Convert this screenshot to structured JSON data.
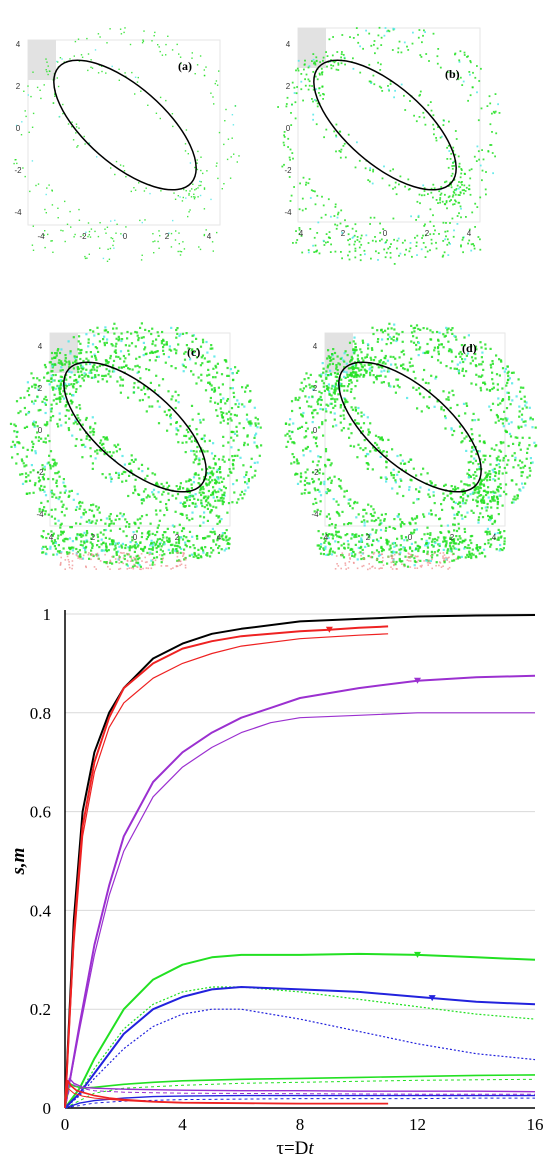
{
  "panels": [
    {
      "label": "(a)",
      "ticks": [
        "4",
        "2",
        "0",
        "-2",
        "-4"
      ],
      "xticks": [
        "-4",
        "-2",
        "0",
        "2",
        "4"
      ],
      "density": 0.25
    },
    {
      "label": "(b)",
      "ticks": [
        "4",
        "2",
        "0",
        "-2",
        "-4"
      ],
      "xticks": [
        "4",
        "2",
        "0",
        "2",
        "4"
      ],
      "density": 0.55
    },
    {
      "label": "(c)",
      "ticks": [
        "4",
        "2",
        "0",
        "-2",
        "-4"
      ],
      "xticks": [
        "4",
        "2",
        "0",
        "2",
        "4"
      ],
      "density": 1.0
    },
    {
      "label": "(d)",
      "ticks": [
        "4",
        "2",
        "0",
        "-2",
        "-4"
      ],
      "xticks": [
        "4",
        "2",
        "0",
        "2",
        "4"
      ],
      "density": 1.0
    }
  ],
  "colors": {
    "green": "#22e022",
    "cyan": "#50e8e8",
    "red": "#ee2222",
    "purple": "#9b30d0",
    "blue": "#2222dd",
    "black": "#000000"
  },
  "chart_data": {
    "type": "line",
    "xlabel": "τ=Dt",
    "ylabel": "s,m",
    "xlim": [
      0,
      16
    ],
    "ylim": [
      0,
      1
    ],
    "xticks": [
      "0",
      "4",
      "8",
      "12",
      "16"
    ],
    "yticks": [
      "0",
      "0.2",
      "0.4",
      "0.6",
      "0.8",
      "1"
    ],
    "grid": "horizontal",
    "series": [
      {
        "color": "#000000",
        "width": 2.0,
        "dash": "",
        "x": [
          0,
          0.3,
          0.6,
          1,
          1.5,
          2,
          3,
          4,
          5,
          6,
          8,
          10,
          12,
          14,
          16
        ],
        "y": [
          0,
          0.38,
          0.6,
          0.72,
          0.8,
          0.85,
          0.91,
          0.94,
          0.96,
          0.97,
          0.985,
          0.99,
          0.995,
          0.997,
          0.998
        ]
      },
      {
        "color": "#ee2222",
        "width": 2.0,
        "dash": "",
        "marker_x": 9,
        "x": [
          0,
          0.3,
          0.6,
          1,
          1.5,
          2,
          3,
          4,
          5,
          6,
          8,
          9,
          10,
          11
        ],
        "y": [
          0,
          0.35,
          0.57,
          0.7,
          0.79,
          0.85,
          0.9,
          0.93,
          0.945,
          0.955,
          0.965,
          0.968,
          0.972,
          0.975
        ]
      },
      {
        "color": "#ee2222",
        "width": 1.2,
        "dash": "",
        "x": [
          0,
          0.3,
          0.6,
          1,
          1.5,
          2,
          3,
          4,
          5,
          6,
          8,
          10,
          11
        ],
        "y": [
          0,
          0.33,
          0.55,
          0.68,
          0.77,
          0.82,
          0.87,
          0.9,
          0.92,
          0.935,
          0.95,
          0.957,
          0.96
        ]
      },
      {
        "color": "#9b30d0",
        "width": 2.0,
        "dash": "",
        "marker_x": 12,
        "x": [
          0,
          0.5,
          1,
          1.5,
          2,
          3,
          4,
          5,
          6,
          7,
          8,
          10,
          12,
          14,
          16
        ],
        "y": [
          0,
          0.17,
          0.33,
          0.45,
          0.55,
          0.66,
          0.72,
          0.76,
          0.79,
          0.81,
          0.83,
          0.85,
          0.865,
          0.872,
          0.875
        ]
      },
      {
        "color": "#9b30d0",
        "width": 1.2,
        "dash": "",
        "x": [
          0,
          0.5,
          1,
          1.5,
          2,
          3,
          4,
          5,
          6,
          7,
          8,
          10,
          12,
          14,
          16
        ],
        "y": [
          0,
          0.16,
          0.31,
          0.43,
          0.52,
          0.63,
          0.69,
          0.73,
          0.76,
          0.78,
          0.79,
          0.795,
          0.8,
          0.8,
          0.8
        ]
      },
      {
        "color": "#22e022",
        "width": 2.0,
        "dash": "",
        "marker_x": 12,
        "x": [
          0,
          0.5,
          1,
          2,
          3,
          4,
          5,
          6,
          8,
          10,
          12,
          14,
          16
        ],
        "y": [
          0,
          0.04,
          0.1,
          0.2,
          0.26,
          0.29,
          0.305,
          0.31,
          0.31,
          0.312,
          0.31,
          0.305,
          0.3
        ]
      },
      {
        "color": "#22e022",
        "width": 1.2,
        "dash": "2,2",
        "x": [
          0,
          0.5,
          1,
          2,
          3,
          4,
          5,
          6,
          8,
          10,
          12,
          14,
          16
        ],
        "y": [
          0,
          0.03,
          0.08,
          0.16,
          0.21,
          0.235,
          0.245,
          0.245,
          0.235,
          0.22,
          0.205,
          0.19,
          0.18
        ]
      },
      {
        "color": "#2222dd",
        "width": 2.0,
        "dash": "",
        "marker_x": 12.5,
        "x": [
          0,
          0.5,
          1,
          2,
          3,
          4,
          5,
          6,
          8,
          10,
          12,
          14,
          16
        ],
        "y": [
          0,
          0.03,
          0.07,
          0.15,
          0.2,
          0.225,
          0.24,
          0.245,
          0.24,
          0.235,
          0.225,
          0.215,
          0.21
        ]
      },
      {
        "color": "#2222dd",
        "width": 1.2,
        "dash": "2,2",
        "x": [
          0,
          0.5,
          1,
          2,
          3,
          4,
          5,
          6,
          8,
          10,
          12,
          14,
          16
        ],
        "y": [
          0,
          0.025,
          0.06,
          0.12,
          0.165,
          0.19,
          0.2,
          0.2,
          0.18,
          0.155,
          0.13,
          0.11,
          0.098
        ]
      },
      {
        "color": "#22e022",
        "width": 1.6,
        "dash": "",
        "x": [
          0,
          0.15,
          0.3,
          0.6,
          1,
          2,
          3,
          4,
          6,
          8,
          10,
          12,
          14,
          16
        ],
        "y": [
          0,
          0.05,
          0.045,
          0.04,
          0.042,
          0.048,
          0.052,
          0.055,
          0.058,
          0.06,
          0.062,
          0.064,
          0.066,
          0.067
        ]
      },
      {
        "color": "#22e022",
        "width": 1.0,
        "dash": "3,3",
        "x": [
          0,
          1,
          2,
          4,
          6,
          8,
          10,
          12,
          14,
          16
        ],
        "y": [
          0,
          0.03,
          0.04,
          0.046,
          0.05,
          0.052,
          0.054,
          0.056,
          0.057,
          0.058
        ]
      },
      {
        "color": "#9b30d0",
        "width": 1.4,
        "dash": "",
        "x": [
          0,
          0.15,
          0.3,
          0.6,
          1,
          2,
          4,
          6,
          8,
          10,
          12,
          14,
          16
        ],
        "y": [
          0,
          0.06,
          0.05,
          0.042,
          0.04,
          0.038,
          0.036,
          0.035,
          0.035,
          0.034,
          0.034,
          0.034,
          0.033
        ]
      },
      {
        "color": "#9b30d0",
        "width": 1.0,
        "dash": "4,3",
        "x": [
          0,
          0.2,
          0.5,
          1,
          2,
          4,
          8,
          12,
          16
        ],
        "y": [
          0,
          0.05,
          0.04,
          0.035,
          0.032,
          0.03,
          0.029,
          0.028,
          0.028
        ]
      },
      {
        "color": "#2222dd",
        "width": 1.4,
        "dash": "",
        "x": [
          0,
          0.5,
          1,
          2,
          3,
          4,
          6,
          8,
          10,
          12,
          14,
          16
        ],
        "y": [
          0,
          0.01,
          0.015,
          0.02,
          0.023,
          0.024,
          0.025,
          0.025,
          0.025,
          0.025,
          0.025,
          0.025
        ]
      },
      {
        "color": "#2222dd",
        "width": 1.0,
        "dash": "3,3",
        "x": [
          0,
          1,
          2,
          4,
          6,
          8,
          10,
          12,
          14,
          16
        ],
        "y": [
          0,
          0.01,
          0.014,
          0.017,
          0.018,
          0.019,
          0.019,
          0.019,
          0.02,
          0.02
        ]
      },
      {
        "color": "#ee2222",
        "width": 1.6,
        "dash": "",
        "x": [
          0,
          0.1,
          0.2,
          0.4,
          0.7,
          1,
          1.5,
          2,
          3,
          4,
          6,
          8,
          11
        ],
        "y": [
          0,
          0.055,
          0.045,
          0.035,
          0.03,
          0.025,
          0.02,
          0.017,
          0.013,
          0.011,
          0.01,
          0.009,
          0.009
        ]
      },
      {
        "color": "#ee2222",
        "width": 1.0,
        "dash": "",
        "x": [
          0,
          0.1,
          0.3,
          0.6,
          1,
          2,
          3,
          4,
          6,
          8,
          11
        ],
        "y": [
          0,
          0.04,
          0.03,
          0.024,
          0.02,
          0.015,
          0.012,
          0.01,
          0.009,
          0.008,
          0.008
        ]
      }
    ]
  }
}
